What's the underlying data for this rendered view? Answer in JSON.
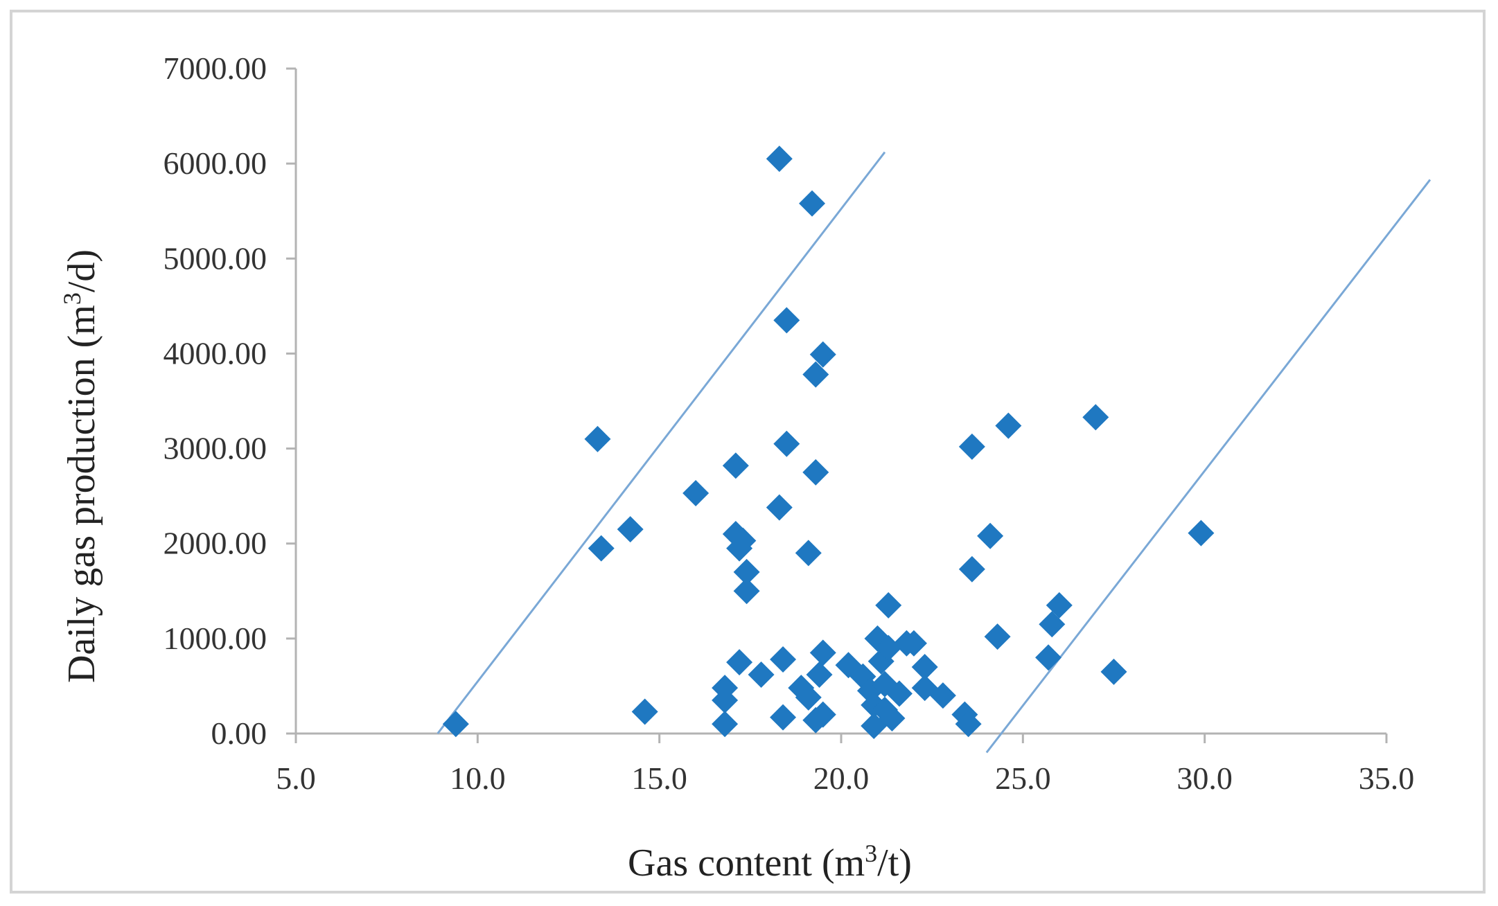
{
  "chart_data": {
    "type": "scatter",
    "title": "",
    "xlabel": {
      "prefix": "Gas content (m",
      "sup": "3",
      "suffix": "/t)"
    },
    "ylabel": {
      "prefix": "Daily gas production (m",
      "sup": "3",
      "suffix": "/d)"
    },
    "xlim": [
      5.0,
      35.0
    ],
    "ylim": [
      0,
      7000
    ],
    "xticks": [
      "5.0",
      "10.0",
      "15.0",
      "20.0",
      "25.0",
      "30.0",
      "35.0"
    ],
    "yticks": [
      "0.00",
      "1000.00",
      "2000.00",
      "3000.00",
      "4000.00",
      "5000.00",
      "6000.00",
      "7000.00"
    ],
    "grid": false,
    "legend": "none",
    "marker": "diamond",
    "point_color": "#1f78c1",
    "line_color": "#7aa8d6",
    "points": [
      [
        9.4,
        100
      ],
      [
        13.3,
        3100
      ],
      [
        13.4,
        1950
      ],
      [
        14.2,
        2150
      ],
      [
        14.6,
        230
      ],
      [
        16.0,
        2530
      ],
      [
        16.8,
        480
      ],
      [
        16.8,
        350
      ],
      [
        16.8,
        100
      ],
      [
        17.1,
        2820
      ],
      [
        17.1,
        2100
      ],
      [
        17.2,
        1950
      ],
      [
        17.3,
        2030
      ],
      [
        17.2,
        750
      ],
      [
        17.4,
        1700
      ],
      [
        17.4,
        1500
      ],
      [
        17.8,
        620
      ],
      [
        18.3,
        6050
      ],
      [
        18.3,
        2380
      ],
      [
        18.4,
        780
      ],
      [
        18.4,
        170
      ],
      [
        18.5,
        4350
      ],
      [
        18.5,
        3050
      ],
      [
        18.9,
        480
      ],
      [
        19.1,
        1900
      ],
      [
        19.1,
        380
      ],
      [
        19.2,
        5580
      ],
      [
        19.3,
        3780
      ],
      [
        19.3,
        2750
      ],
      [
        19.3,
        140
      ],
      [
        19.4,
        620
      ],
      [
        19.5,
        3990
      ],
      [
        19.5,
        850
      ],
      [
        19.5,
        200
      ],
      [
        20.2,
        720
      ],
      [
        20.6,
        600
      ],
      [
        20.8,
        450
      ],
      [
        20.9,
        300
      ],
      [
        20.9,
        80
      ],
      [
        21.0,
        1000
      ],
      [
        21.1,
        760
      ],
      [
        21.2,
        520
      ],
      [
        21.2,
        250
      ],
      [
        21.3,
        1350
      ],
      [
        21.3,
        900
      ],
      [
        21.4,
        160
      ],
      [
        21.6,
        420
      ],
      [
        21.8,
        950
      ],
      [
        22.0,
        950
      ],
      [
        22.3,
        700
      ],
      [
        22.3,
        480
      ],
      [
        22.8,
        400
      ],
      [
        23.4,
        200
      ],
      [
        23.5,
        100
      ],
      [
        23.6,
        3020
      ],
      [
        23.6,
        1730
      ],
      [
        24.1,
        2080
      ],
      [
        24.3,
        1020
      ],
      [
        24.6,
        3240
      ],
      [
        25.7,
        800
      ],
      [
        25.8,
        1150
      ],
      [
        26.0,
        1350
      ],
      [
        27.0,
        3330
      ],
      [
        27.5,
        650
      ],
      [
        29.9,
        2110
      ]
    ],
    "lines": [
      {
        "x": [
          8.9,
          21.2
        ],
        "y": [
          0,
          6120
        ]
      },
      {
        "x": [
          24.0,
          36.2
        ],
        "y": [
          -200,
          5830
        ]
      }
    ]
  }
}
